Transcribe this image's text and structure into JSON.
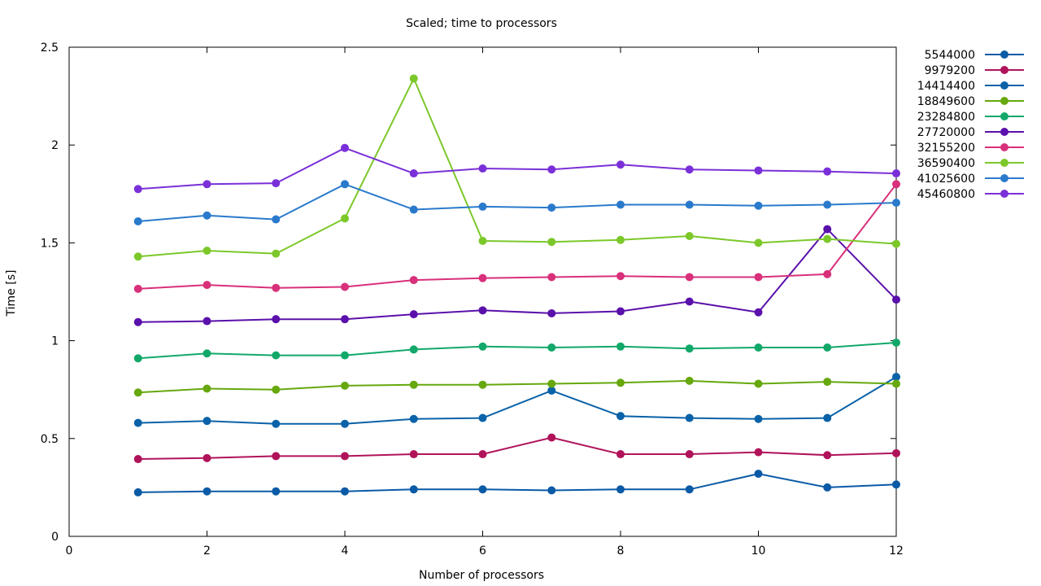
{
  "chart_data": {
    "type": "line",
    "title": "Scaled; time to processors",
    "xlabel": "Number of processors",
    "ylabel": "Time [s]",
    "xlim": [
      0,
      12
    ],
    "ylim": [
      0,
      2.5
    ],
    "xticks": [
      0,
      2,
      4,
      6,
      8,
      10,
      12
    ],
    "yticks": [
      0,
      0.5,
      1,
      1.5,
      2,
      2.5
    ],
    "xtick_labels": [
      "0",
      "2",
      "4",
      "6",
      "8",
      "10",
      "12"
    ],
    "ytick_labels": [
      "0",
      "0.5",
      "1",
      "1.5",
      "2",
      "2.5"
    ],
    "grid": false,
    "legend_position": "outside-right-top",
    "x": [
      1,
      2,
      3,
      4,
      5,
      6,
      7,
      8,
      9,
      10,
      11,
      12
    ],
    "series": [
      {
        "name": "5544000",
        "color": "#0a5aa6",
        "values": [
          0.225,
          0.23,
          0.23,
          0.23,
          0.24,
          0.24,
          0.235,
          0.24,
          0.24,
          0.32,
          0.25,
          0.265
        ]
      },
      {
        "name": "9979200",
        "color": "#b0135a",
        "values": [
          0.395,
          0.4,
          0.41,
          0.41,
          0.42,
          0.42,
          0.505,
          0.42,
          0.42,
          0.43,
          0.415,
          0.425
        ]
      },
      {
        "name": "14414400",
        "color": "#0a62a8",
        "values": [
          0.58,
          0.59,
          0.575,
          0.575,
          0.6,
          0.605,
          0.745,
          0.615,
          0.605,
          0.6,
          0.605,
          0.815
        ]
      },
      {
        "name": "18849600",
        "color": "#66a80e",
        "values": [
          0.735,
          0.755,
          0.75,
          0.77,
          0.775,
          0.775,
          0.78,
          0.785,
          0.795,
          0.78,
          0.79,
          0.78
        ]
      },
      {
        "name": "23284800",
        "color": "#12a86a",
        "values": [
          0.91,
          0.935,
          0.925,
          0.925,
          0.955,
          0.97,
          0.965,
          0.97,
          0.96,
          0.965,
          0.965,
          0.99
        ]
      },
      {
        "name": "27720000",
        "color": "#5a10aa",
        "values": [
          1.095,
          1.1,
          1.11,
          1.11,
          1.135,
          1.155,
          1.14,
          1.15,
          1.2,
          1.145,
          1.57,
          1.21
        ]
      },
      {
        "name": "32155200",
        "color": "#d8307a",
        "values": [
          1.265,
          1.285,
          1.27,
          1.275,
          1.31,
          1.32,
          1.325,
          1.33,
          1.325,
          1.325,
          1.34,
          1.8
        ]
      },
      {
        "name": "36590400",
        "color": "#7cc82a",
        "values": [
          1.43,
          1.46,
          1.445,
          1.625,
          2.34,
          1.51,
          1.505,
          1.515,
          1.535,
          1.5,
          1.52,
          1.495
        ]
      },
      {
        "name": "41025600",
        "color": "#2a7acc",
        "values": [
          1.61,
          1.64,
          1.62,
          1.8,
          1.67,
          1.685,
          1.68,
          1.695,
          1.695,
          1.69,
          1.695,
          1.705
        ]
      },
      {
        "name": "45460800",
        "color": "#7a30d8",
        "values": [
          1.775,
          1.8,
          1.805,
          1.985,
          1.855,
          1.88,
          1.875,
          1.9,
          1.875,
          1.87,
          1.865,
          1.855
        ]
      }
    ]
  }
}
